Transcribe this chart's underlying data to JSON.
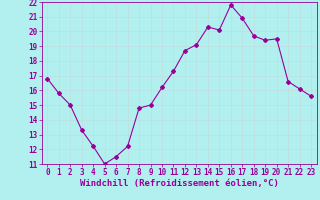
{
  "x": [
    0,
    1,
    2,
    3,
    4,
    5,
    6,
    7,
    8,
    9,
    10,
    11,
    12,
    13,
    14,
    15,
    16,
    17,
    18,
    19,
    20,
    21,
    22,
    23
  ],
  "y": [
    16.8,
    15.8,
    15.0,
    13.3,
    12.2,
    11.0,
    11.5,
    12.2,
    14.8,
    15.0,
    16.2,
    17.3,
    18.7,
    19.1,
    20.3,
    20.1,
    21.8,
    20.9,
    19.7,
    19.4,
    19.5,
    16.6,
    16.1,
    15.6
  ],
  "line_color": "#990099",
  "marker": "D",
  "marker_size": 2,
  "bg_color": "#b2f0f0",
  "grid_color": "#c0dede",
  "xlabel": "Windchill (Refroidissement éolien,°C)",
  "xlabel_color": "#990099",
  "tick_color": "#990099",
  "ylim": [
    11,
    22
  ],
  "xlim": [
    -0.5,
    23.5
  ],
  "yticks": [
    11,
    12,
    13,
    14,
    15,
    16,
    17,
    18,
    19,
    20,
    21,
    22
  ],
  "xticks": [
    0,
    1,
    2,
    3,
    4,
    5,
    6,
    7,
    8,
    9,
    10,
    11,
    12,
    13,
    14,
    15,
    16,
    17,
    18,
    19,
    20,
    21,
    22,
    23
  ],
  "tick_fontsize": 5.5,
  "xlabel_fontsize": 6.5,
  "line_width": 0.8
}
